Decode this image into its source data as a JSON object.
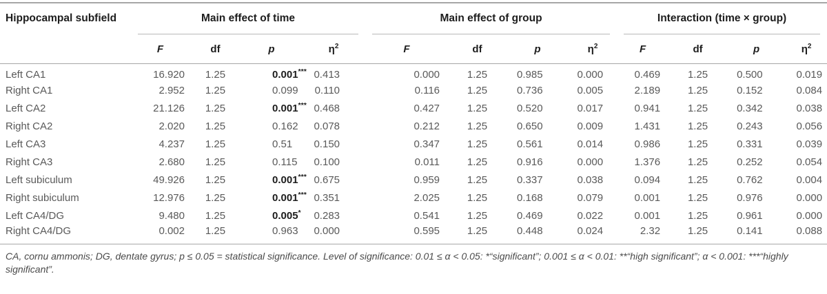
{
  "table": {
    "row_header": "Hippocampal subfield",
    "sections": [
      {
        "label": "Main effect of time"
      },
      {
        "label": "Main effect of group"
      },
      {
        "label": "Interaction (time × group)"
      }
    ],
    "stat_headers": [
      {
        "label": "F",
        "sup": ""
      },
      {
        "label": "df",
        "sup": ""
      },
      {
        "label": "p",
        "sup": ""
      },
      {
        "label": "η",
        "sup": "2"
      }
    ],
    "rows": [
      {
        "subfield": "Left CA1",
        "sections": [
          {
            "F": "16.920",
            "df": "1.25",
            "p": "0.001",
            "stars": "***",
            "sig": true,
            "eta": "0.413"
          },
          {
            "F": "0.000",
            "df": "1.25",
            "p": "0.985",
            "stars": "",
            "sig": false,
            "eta": "0.000"
          },
          {
            "F": "0.469",
            "df": "1.25",
            "p": "0.500",
            "stars": "",
            "sig": false,
            "eta": "0.019"
          }
        ]
      },
      {
        "subfield": "Right CA1",
        "sections": [
          {
            "F": "2.952",
            "df": "1.25",
            "p": "0.099",
            "stars": "",
            "sig": false,
            "eta": "0.110"
          },
          {
            "F": "0.116",
            "df": "1.25",
            "p": "0.736",
            "stars": "",
            "sig": false,
            "eta": "0.005"
          },
          {
            "F": "2.189",
            "df": "1.25",
            "p": "0.152",
            "stars": "",
            "sig": false,
            "eta": "0.084"
          }
        ]
      },
      {
        "subfield": "Left CA2",
        "sections": [
          {
            "F": "21.126",
            "df": "1.25",
            "p": "0.001",
            "stars": "***",
            "sig": true,
            "eta": "0.468"
          },
          {
            "F": "0.427",
            "df": "1.25",
            "p": "0.520",
            "stars": "",
            "sig": false,
            "eta": "0.017"
          },
          {
            "F": "0.941",
            "df": "1.25",
            "p": "0.342",
            "stars": "",
            "sig": false,
            "eta": "0.038"
          }
        ]
      },
      {
        "subfield": "Right CA2",
        "sections": [
          {
            "F": "2.020",
            "df": "1.25",
            "p": "0.162",
            "stars": "",
            "sig": false,
            "eta": "0.078"
          },
          {
            "F": "0.212",
            "df": "1.25",
            "p": "0.650",
            "stars": "",
            "sig": false,
            "eta": "0.009"
          },
          {
            "F": "1.431",
            "df": "1.25",
            "p": "0.243",
            "stars": "",
            "sig": false,
            "eta": "0.056"
          }
        ]
      },
      {
        "subfield": "Left CA3",
        "sections": [
          {
            "F": "4.237",
            "df": "1.25",
            "p": "0.51",
            "stars": "",
            "sig": false,
            "eta": "0.150"
          },
          {
            "F": "0.347",
            "df": "1.25",
            "p": "0.561",
            "stars": "",
            "sig": false,
            "eta": "0.014"
          },
          {
            "F": "0.986",
            "df": "1.25",
            "p": "0.331",
            "stars": "",
            "sig": false,
            "eta": "0.039"
          }
        ]
      },
      {
        "subfield": "Right CA3",
        "sections": [
          {
            "F": "2.680",
            "df": "1.25",
            "p": "0.115",
            "stars": "",
            "sig": false,
            "eta": "0.100"
          },
          {
            "F": "0.011",
            "df": "1.25",
            "p": "0.916",
            "stars": "",
            "sig": false,
            "eta": "0.000"
          },
          {
            "F": "1.376",
            "df": "1.25",
            "p": "0.252",
            "stars": "",
            "sig": false,
            "eta": "0.054"
          }
        ]
      },
      {
        "subfield": "Left subiculum",
        "sections": [
          {
            "F": "49.926",
            "df": "1.25",
            "p": "0.001",
            "stars": "***",
            "sig": true,
            "eta": "0.675"
          },
          {
            "F": "0.959",
            "df": "1.25",
            "p": "0.337",
            "stars": "",
            "sig": false,
            "eta": "0.038"
          },
          {
            "F": "0.094",
            "df": "1.25",
            "p": "0.762",
            "stars": "",
            "sig": false,
            "eta": "0.004"
          }
        ]
      },
      {
        "subfield": "Right subiculum",
        "sections": [
          {
            "F": "12.976",
            "df": "1.25",
            "p": "0.001",
            "stars": "***",
            "sig": true,
            "eta": "0.351"
          },
          {
            "F": "2.025",
            "df": "1.25",
            "p": "0.168",
            "stars": "",
            "sig": false,
            "eta": "0.079"
          },
          {
            "F": "0.001",
            "df": "1.25",
            "p": "0.976",
            "stars": "",
            "sig": false,
            "eta": "0.000"
          }
        ]
      },
      {
        "subfield": "Left CA4/DG",
        "sections": [
          {
            "F": "9.480",
            "df": "1.25",
            "p": "0.005",
            "stars": "*",
            "sig": true,
            "eta": "0.283"
          },
          {
            "F": "0.541",
            "df": "1.25",
            "p": "0.469",
            "stars": "",
            "sig": false,
            "eta": "0.022"
          },
          {
            "F": "0.001",
            "df": "1.25",
            "p": "0.961",
            "stars": "",
            "sig": false,
            "eta": "0.000"
          }
        ]
      },
      {
        "subfield": "Right CA4/DG",
        "sections": [
          {
            "F": "0.002",
            "df": "1.25",
            "p": "0.963",
            "stars": "",
            "sig": false,
            "eta": "0.000"
          },
          {
            "F": "0.595",
            "df": "1.25",
            "p": "0.448",
            "stars": "",
            "sig": false,
            "eta": "0.024"
          },
          {
            "F": "2.32",
            "df": "1.25",
            "p": "0.141",
            "stars": "",
            "sig": false,
            "eta": "0.088"
          }
        ]
      }
    ]
  },
  "footnote": {
    "text": "CA, cornu ammonis; DG, dentate gyrus; p ≤ 0.05 = statistical significance. Level of significance: 0.01 ≤ α < 0.05: *“significant”; 0.001 ≤ α < 0.01: **“high significant”; α < 0.001: ***“highly significant”."
  }
}
